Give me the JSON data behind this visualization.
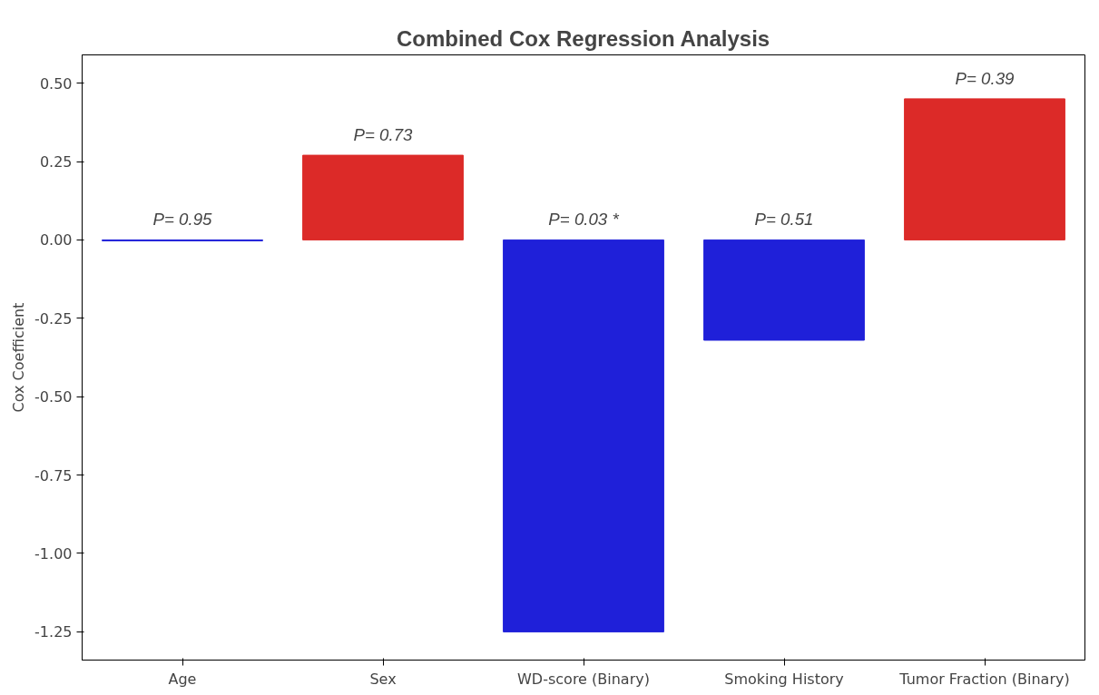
{
  "chart_data": {
    "type": "bar",
    "title": "Combined Cox Regression Analysis",
    "ylabel": "Cox Coefficient",
    "categories": [
      "Age",
      "Sex",
      "WD-score (Binary)",
      "Smoking History",
      "Tumor Fraction (Binary)"
    ],
    "values": [
      -0.003,
      0.27,
      -1.25,
      -0.32,
      0.45
    ],
    "colors": [
      "#1f20d9",
      "#dc2a28",
      "#1f20d9",
      "#1f20d9",
      "#dc2a28"
    ],
    "ylim": [
      -1.34,
      0.59
    ],
    "yticks": [
      {
        "value": -1.25,
        "label": "-1.25"
      },
      {
        "value": -1.0,
        "label": "-1.00"
      },
      {
        "value": -0.75,
        "label": "-0.75"
      },
      {
        "value": -0.5,
        "label": "-0.50"
      },
      {
        "value": -0.25,
        "label": "-0.25"
      },
      {
        "value": 0,
        "label": "0.00"
      },
      {
        "value": 0.25,
        "label": "0.25"
      },
      {
        "value": 0.5,
        "label": "0.50"
      }
    ],
    "grid": false,
    "annotations": [
      "P= 0.95",
      "P= 0.73",
      "P= 0.03 *",
      "P= 0.51",
      "P= 0.39"
    ]
  }
}
